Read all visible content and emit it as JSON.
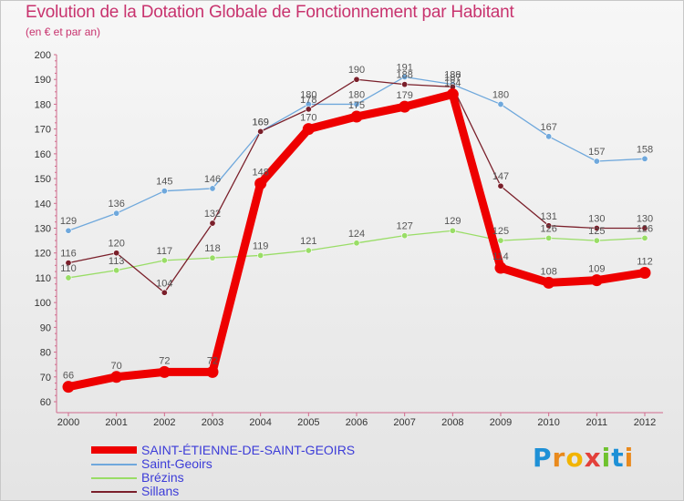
{
  "title": "Evolution de la Dotation Globale de Fonctionnement par Habitant",
  "subtitle": "(en € et par an)",
  "logo_text": "Proxiti",
  "chart_data": {
    "type": "line",
    "title": "Evolution de la Dotation Globale de Fonctionnement par Habitant",
    "ylabel": "(en € et par an)",
    "xlabel": "",
    "ylim": [
      60,
      200
    ],
    "grid": false,
    "categories": [
      "2000",
      "2001",
      "2002",
      "2003",
      "2004",
      "2005",
      "2006",
      "2007",
      "2008",
      "2009",
      "2010",
      "2011",
      "2012"
    ],
    "yticks": [
      "60",
      "70",
      "80",
      "90",
      "100",
      "110",
      "120",
      "130",
      "140",
      "150",
      "160",
      "170",
      "180",
      "190",
      "200"
    ],
    "series": [
      {
        "name": "SAINT-ÉTIENNE-DE-SAINT-GEOIRS",
        "color": "#ee0000",
        "values": [
          66,
          70,
          72,
          72,
          148,
          170,
          175,
          179,
          184,
          114,
          108,
          109,
          112
        ]
      },
      {
        "name": "Saint-Geoirs",
        "color": "#6fa8dc",
        "values": [
          129,
          136,
          145,
          146,
          169,
          180,
          180,
          191,
          188,
          180,
          167,
          157,
          158
        ]
      },
      {
        "name": "Brézins",
        "color": "#99dd66",
        "values": [
          110,
          113,
          117,
          118,
          119,
          121,
          124,
          127,
          129,
          125,
          126,
          125,
          126
        ]
      },
      {
        "name": "Sillans",
        "color": "#7a1f2a",
        "values": [
          116,
          120,
          104,
          132,
          169,
          178,
          190,
          188,
          187,
          147,
          131,
          130,
          130
        ]
      }
    ]
  }
}
